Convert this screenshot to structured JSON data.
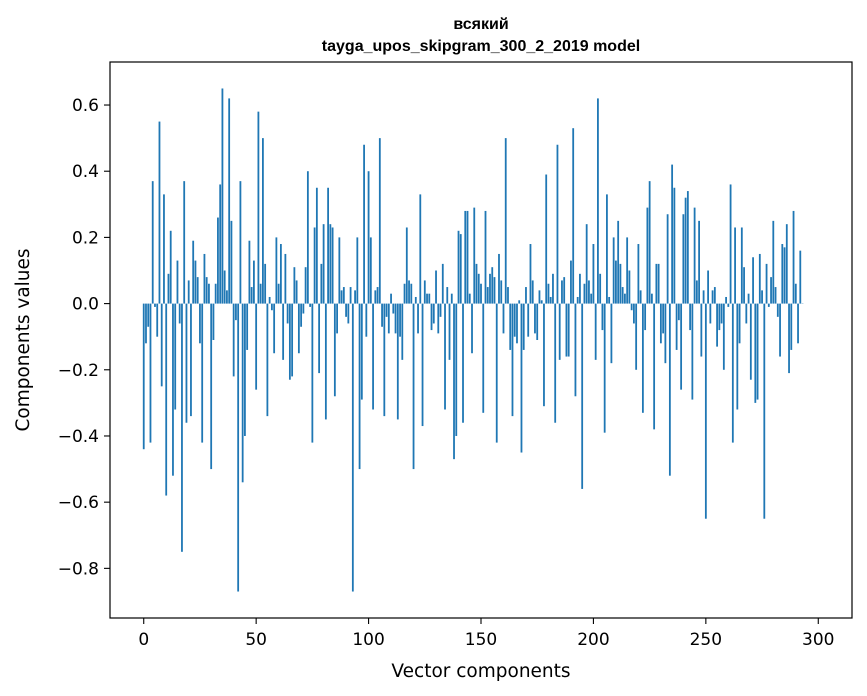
{
  "chart_data": {
    "type": "bar",
    "title_line1": "всякий",
    "title_line2": "tayga_upos_skipgram_300_2_2019 model",
    "xlabel": "Vector components",
    "ylabel": "Components values",
    "xlim": [
      -15,
      315
    ],
    "ylim": [
      -0.95,
      0.73
    ],
    "x_ticks": [
      0,
      50,
      100,
      150,
      200,
      250,
      300
    ],
    "x_tick_labels": [
      "0",
      "50",
      "100",
      "150",
      "200",
      "250",
      "300"
    ],
    "y_ticks": [
      -0.8,
      -0.6,
      -0.4,
      -0.2,
      0.0,
      0.2,
      0.4,
      0.6
    ],
    "y_tick_labels": [
      "−0.8",
      "−0.6",
      "−0.4",
      "−0.2",
      "0.0",
      "0.2",
      "0.4",
      "0.6"
    ],
    "bar_color": "#1f77b4",
    "series": [
      {
        "name": "components",
        "values": [
          -0.44,
          -0.12,
          -0.07,
          -0.42,
          0.37,
          -0.01,
          -0.1,
          0.55,
          -0.25,
          0.33,
          -0.58,
          0.09,
          0.22,
          -0.52,
          -0.32,
          0.13,
          -0.06,
          -0.75,
          0.37,
          -0.36,
          0.07,
          -0.34,
          0.19,
          0.13,
          0.08,
          -0.12,
          -0.42,
          0.15,
          0.08,
          0.06,
          -0.5,
          -0.11,
          0.06,
          0.26,
          0.36,
          0.65,
          0.1,
          0.04,
          0.62,
          0.25,
          -0.22,
          -0.05,
          -0.87,
          0.37,
          -0.54,
          -0.4,
          -0.14,
          0.19,
          0.05,
          0.13,
          -0.26,
          0.58,
          0.06,
          0.5,
          0.12,
          -0.34,
          0.02,
          -0.02,
          -0.15,
          0.2,
          0.06,
          0.18,
          -0.17,
          0.15,
          -0.06,
          -0.23,
          -0.22,
          0.11,
          0.07,
          -0.15,
          -0.07,
          -0.03,
          0.11,
          0.4,
          -0.01,
          -0.42,
          0.23,
          0.35,
          -0.21,
          0.12,
          0.24,
          -0.35,
          0.35,
          0.24,
          0.23,
          -0.28,
          -0.09,
          0.2,
          0.04,
          0.05,
          -0.04,
          -0.06,
          0.05,
          -0.87,
          0.04,
          0.2,
          -0.5,
          -0.29,
          0.48,
          -0.1,
          0.4,
          0.2,
          -0.32,
          0.04,
          0.05,
          0.5,
          -0.07,
          -0.34,
          -0.04,
          -0.09,
          0.03,
          -0.03,
          -0.09,
          -0.35,
          -0.1,
          -0.17,
          0.06,
          0.23,
          0.07,
          0.06,
          -0.5,
          0.02,
          -0.09,
          0.33,
          -0.37,
          0.07,
          0.03,
          0.03,
          -0.08,
          -0.06,
          0.1,
          -0.09,
          -0.04,
          0.12,
          -0.32,
          0.05,
          -0.17,
          0.03,
          -0.47,
          -0.4,
          0.22,
          0.21,
          -0.36,
          0.28,
          0.28,
          0.03,
          -0.15,
          0.29,
          0.12,
          0.09,
          0.06,
          -0.33,
          0.28,
          0.05,
          0.09,
          0.11,
          0.08,
          -0.42,
          0.15,
          0.07,
          -0.09,
          0.5,
          0.05,
          -0.14,
          -0.34,
          -0.1,
          -0.12,
          0.01,
          -0.45,
          -0.14,
          0.05,
          -0.1,
          0.18,
          0.07,
          -0.09,
          -0.11,
          0.04,
          0.01,
          -0.31,
          0.39,
          0.06,
          0.02,
          0.09,
          -0.36,
          0.48,
          -0.17,
          0.07,
          0.08,
          -0.16,
          -0.16,
          0.13,
          0.53,
          -0.28,
          0.02,
          0.09,
          -0.56,
          0.06,
          0.24,
          0.07,
          0.03,
          0.18,
          -0.17,
          0.62,
          0.09,
          -0.08,
          -0.39,
          0.33,
          0.02,
          -0.18,
          0.2,
          0.13,
          0.25,
          0.12,
          0.05,
          0.03,
          0.2,
          0.1,
          -0.02,
          -0.06,
          -0.2,
          0.18,
          0.04,
          -0.33,
          -0.08,
          0.29,
          0.37,
          0.03,
          -0.38,
          0.12,
          0.12,
          -0.12,
          -0.09,
          -0.18,
          0.27,
          -0.52,
          0.42,
          0.35,
          -0.14,
          -0.05,
          -0.26,
          0.27,
          0.32,
          0.34,
          -0.08,
          -0.29,
          0.29,
          0.07,
          0.25,
          -0.16,
          0.04,
          -0.65,
          0.1,
          -0.06,
          0.04,
          0.05,
          -0.13,
          -0.08,
          -0.06,
          -0.2,
          0.02,
          -0.01,
          0.36,
          -0.42,
          0.23,
          -0.32,
          -0.12,
          0.23,
          0.11,
          -0.06,
          0.03,
          -0.23,
          0.14,
          -0.3,
          -0.29,
          0.15,
          0.04,
          -0.65,
          0.12,
          -0.01,
          0.08,
          0.25,
          0.05,
          -0.04,
          -0.16,
          0.18,
          0.17,
          0.24,
          -0.21,
          -0.14,
          0.28,
          0.06,
          -0.12,
          0.16,
          0.0
        ]
      }
    ]
  }
}
